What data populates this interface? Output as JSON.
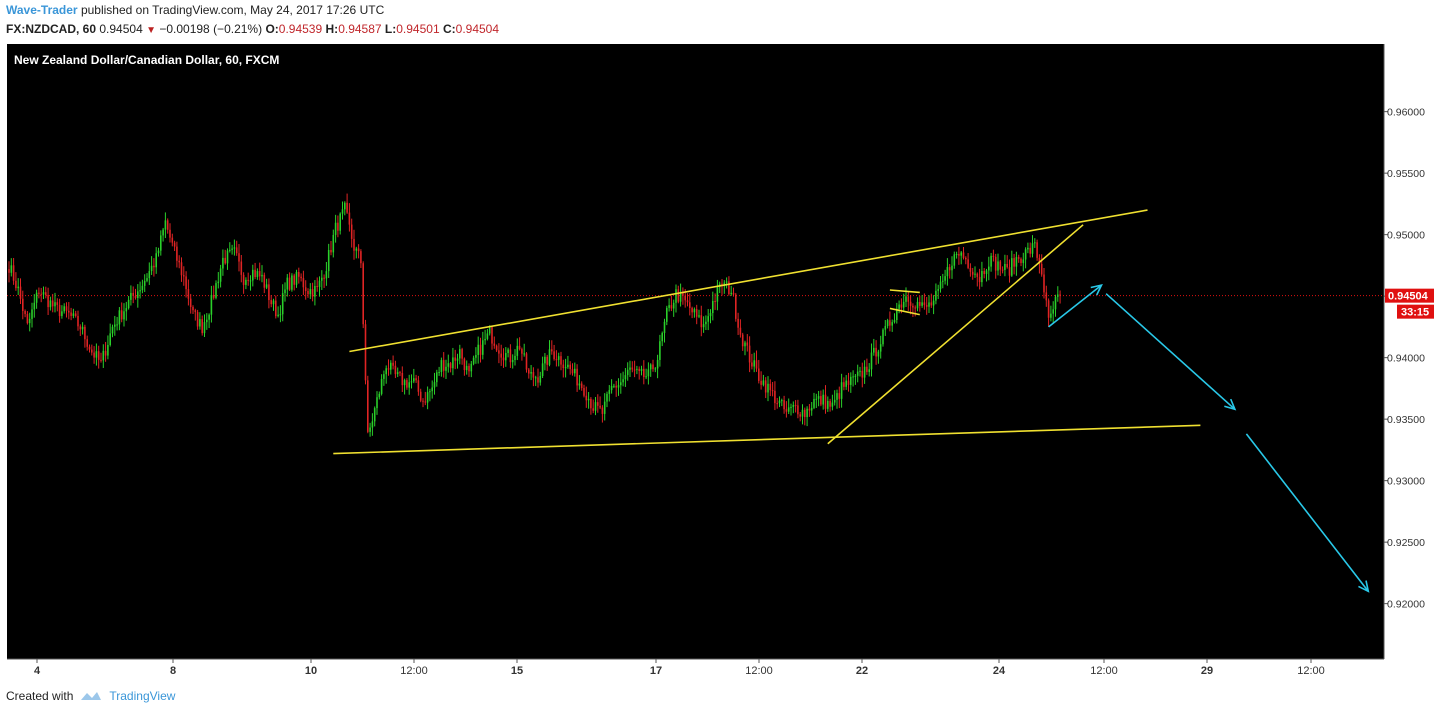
{
  "header": {
    "author": "Wave-Trader",
    "published_text": "published on TradingView.com, May 24, 2017 17:26 UTC",
    "symbol": "FX:NZDCAD, 60",
    "last": "0.94504",
    "change": "−0.00198 (−0.21%)",
    "o_label": "O:",
    "o_value": "0.94539",
    "h_label": "H:",
    "h_value": "0.94587",
    "l_label": "L:",
    "l_value": "0.94501",
    "c_label": "C:",
    "c_value": "0.94504"
  },
  "footer": {
    "created_with": "Created with",
    "brand": "TradingView"
  },
  "colors": {
    "up": "#2ad02a",
    "down": "#e02424",
    "trendline": "#f0e030",
    "forecast": "#29c8e8",
    "background": "#000000",
    "price_tag": "#e01010"
  },
  "chart_data": {
    "type": "candlestick",
    "title": "New Zealand Dollar/Canadian Dollar, 60, FXCM",
    "x_tick_labels": [
      "4",
      "8",
      "10",
      "12:00",
      "15",
      "17",
      "12:00",
      "22",
      "24",
      "12:00",
      "29",
      "12:00"
    ],
    "y_ticks": [
      0.92,
      0.925,
      0.93,
      0.935,
      0.94,
      0.945,
      0.95,
      0.955,
      0.96
    ],
    "y_tick_labels": [
      "0.92000",
      "0.92500",
      "0.93000",
      "0.93500",
      "0.94000",
      "0.94500",
      "0.95000",
      "0.95500",
      "0.96000"
    ],
    "ylim": [
      0.9155,
      0.9655
    ],
    "last_price": 0.94504,
    "last_price_label": "0.94504",
    "countdown_label": "33:15",
    "price_path": [
      [
        0,
        0.9475
      ],
      [
        4,
        0.9455
      ],
      [
        8,
        0.9425
      ],
      [
        13,
        0.9455
      ],
      [
        20,
        0.944
      ],
      [
        26,
        0.9435
      ],
      [
        31,
        0.9425
      ],
      [
        36,
        0.9405
      ],
      [
        40,
        0.9395
      ],
      [
        45,
        0.9425
      ],
      [
        52,
        0.9445
      ],
      [
        58,
        0.946
      ],
      [
        64,
        0.948
      ],
      [
        68,
        0.951
      ],
      [
        72,
        0.9485
      ],
      [
        76,
        0.9465
      ],
      [
        80,
        0.9435
      ],
      [
        84,
        0.9425
      ],
      [
        88,
        0.9445
      ],
      [
        93,
        0.948
      ],
      [
        98,
        0.9485
      ],
      [
        102,
        0.9465
      ],
      [
        106,
        0.947
      ],
      [
        110,
        0.9465
      ],
      [
        114,
        0.9445
      ],
      [
        117,
        0.9435
      ],
      [
        121,
        0.946
      ],
      [
        126,
        0.9465
      ],
      [
        130,
        0.9455
      ],
      [
        134,
        0.9455
      ],
      [
        138,
        0.9475
      ],
      [
        142,
        0.9505
      ],
      [
        146,
        0.952
      ],
      [
        150,
        0.949
      ],
      [
        153,
        0.9478
      ],
      [
        156,
        0.9335
      ],
      [
        160,
        0.9365
      ],
      [
        164,
        0.9395
      ],
      [
        168,
        0.9385
      ],
      [
        172,
        0.938
      ],
      [
        176,
        0.938
      ],
      [
        180,
        0.9365
      ],
      [
        184,
        0.9375
      ],
      [
        188,
        0.9395
      ],
      [
        192,
        0.9395
      ],
      [
        196,
        0.9405
      ],
      [
        200,
        0.9385
      ],
      [
        204,
        0.9405
      ],
      [
        209,
        0.942
      ],
      [
        214,
        0.9405
      ],
      [
        218,
        0.94
      ],
      [
        222,
        0.941
      ],
      [
        226,
        0.9385
      ],
      [
        230,
        0.9385
      ],
      [
        236,
        0.9405
      ],
      [
        242,
        0.9395
      ],
      [
        246,
        0.9385
      ],
      [
        250,
        0.9375
      ],
      [
        254,
        0.936
      ],
      [
        258,
        0.9355
      ],
      [
        262,
        0.9375
      ],
      [
        266,
        0.938
      ],
      [
        270,
        0.939
      ],
      [
        274,
        0.9385
      ],
      [
        278,
        0.9385
      ],
      [
        282,
        0.94
      ],
      [
        286,
        0.9435
      ],
      [
        290,
        0.9452
      ],
      [
        294,
        0.9445
      ],
      [
        298,
        0.9435
      ],
      [
        302,
        0.9425
      ],
      [
        306,
        0.9445
      ],
      [
        310,
        0.946
      ],
      [
        314,
        0.9455
      ],
      [
        318,
        0.942
      ],
      [
        322,
        0.94
      ],
      [
        326,
        0.9385
      ],
      [
        330,
        0.9375
      ],
      [
        334,
        0.9365
      ],
      [
        338,
        0.9355
      ],
      [
        342,
        0.936
      ],
      [
        346,
        0.9355
      ],
      [
        350,
        0.9365
      ],
      [
        354,
        0.9365
      ],
      [
        358,
        0.936
      ],
      [
        362,
        0.9375
      ],
      [
        366,
        0.938
      ],
      [
        370,
        0.9385
      ],
      [
        374,
        0.9395
      ],
      [
        378,
        0.941
      ],
      [
        382,
        0.9425
      ],
      [
        386,
        0.944
      ],
      [
        390,
        0.945
      ],
      [
        394,
        0.9445
      ],
      [
        398,
        0.944
      ],
      [
        402,
        0.9445
      ],
      [
        406,
        0.946
      ],
      [
        410,
        0.948
      ],
      [
        414,
        0.9485
      ],
      [
        418,
        0.9475
      ],
      [
        422,
        0.9465
      ],
      [
        426,
        0.948
      ],
      [
        430,
        0.9475
      ],
      [
        434,
        0.947
      ],
      [
        438,
        0.948
      ],
      [
        442,
        0.9485
      ],
      [
        446,
        0.949
      ],
      [
        449,
        0.947
      ],
      [
        452,
        0.9428
      ],
      [
        455,
        0.9445
      ],
      [
        457,
        0.945
      ]
    ],
    "annotations": {
      "trendlines": [
        {
          "from": [
            148,
            0.9405
          ],
          "to": [
            495,
            0.952
          ]
        },
        {
          "from": [
            141,
            0.9322
          ],
          "to": [
            518,
            0.9345
          ]
        },
        {
          "from": [
            356,
            0.933
          ],
          "to": [
            467,
            0.9508
          ]
        },
        {
          "from": [
            383,
            0.9455
          ],
          "to": [
            396,
            0.9453
          ]
        },
        {
          "from": [
            383,
            0.944
          ],
          "to": [
            396,
            0.9435
          ]
        }
      ],
      "forecast_arrows": [
        {
          "from": [
            452,
            0.9425
          ],
          "to": [
            475,
            0.9459
          ]
        },
        {
          "from": [
            477,
            0.9452
          ],
          "to": [
            533,
            0.9358
          ]
        },
        {
          "from": [
            538,
            0.9338
          ],
          "to": [
            591,
            0.921
          ]
        }
      ]
    }
  }
}
